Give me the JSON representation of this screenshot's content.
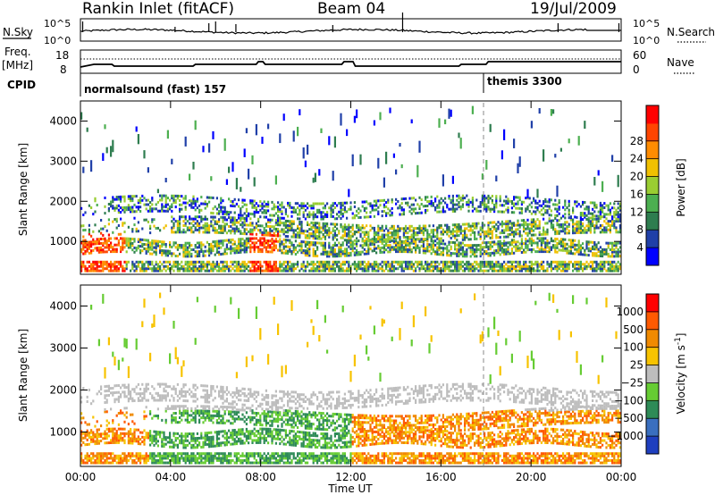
{
  "header": {
    "station": "Rankin Inlet (fitACF)",
    "beam": "Beam 04",
    "date": "19/Jul/2009"
  },
  "strips": {
    "nsky_label": "N.Sky",
    "nsky_ticks": [
      "10^5",
      "10^0"
    ],
    "nsearch_label": "N.Search",
    "nsearch_ticks": [
      "10^5",
      "10^0"
    ],
    "freq_label": "Freq.",
    "freq_unit": "[MHz]",
    "freq_ticks": [
      "18",
      "8"
    ],
    "nave_label": "Nave",
    "nave_ticks": [
      "60",
      "0"
    ],
    "cpid_label": "CPID",
    "cpid_segments": [
      {
        "label": "normalsound (fast) 157",
        "start_hour": 0
      },
      {
        "label": "themis 3300",
        "start_hour": 18.0
      }
    ]
  },
  "chart_data": [
    {
      "type": "heatmap",
      "name": "power",
      "ylabel": "Slant Range [km]",
      "xlabel": "Time UT",
      "ylim": [
        180,
        4500
      ],
      "x_ticks": [
        "00:00",
        "04:00",
        "08:00",
        "12:00",
        "16:00",
        "20:00",
        "00:00"
      ],
      "y_ticks": [
        1000,
        2000,
        3000,
        4000
      ],
      "colorbar": {
        "label": "Power [dB]",
        "ticks": [
          4,
          8,
          12,
          16,
          20,
          24,
          28
        ],
        "colors": [
          "#0000ff",
          "#2040a8",
          "#2e7d4f",
          "#4caf50",
          "#9acd32",
          "#f0c000",
          "#ff8c00",
          "#ff4500",
          "#ff0000"
        ]
      }
    },
    {
      "type": "heatmap",
      "name": "velocity",
      "ylabel": "Slant Range [km]",
      "xlabel": "Time UT",
      "ylim": [
        180,
        4500
      ],
      "x_ticks": [
        "00:00",
        "04:00",
        "08:00",
        "12:00",
        "16:00",
        "20:00",
        "00:00"
      ],
      "y_ticks": [
        1000,
        2000,
        3000,
        4000
      ],
      "colorbar": {
        "label": "Velocity [m s",
        "label_sup": "-1",
        "label_end": "]",
        "ticks": [
          "1000",
          "500",
          "100",
          "25",
          "−25",
          "−100",
          "−500",
          "−1000"
        ],
        "colors": [
          "#1f3fbf",
          "#3a6fbf",
          "#2e8b57",
          "#66cc33",
          "#bdbdbd",
          "#f7c300",
          "#f08a00",
          "#ff5a00",
          "#ff0000"
        ]
      }
    }
  ],
  "axis": {
    "time_label": "Time UT"
  }
}
